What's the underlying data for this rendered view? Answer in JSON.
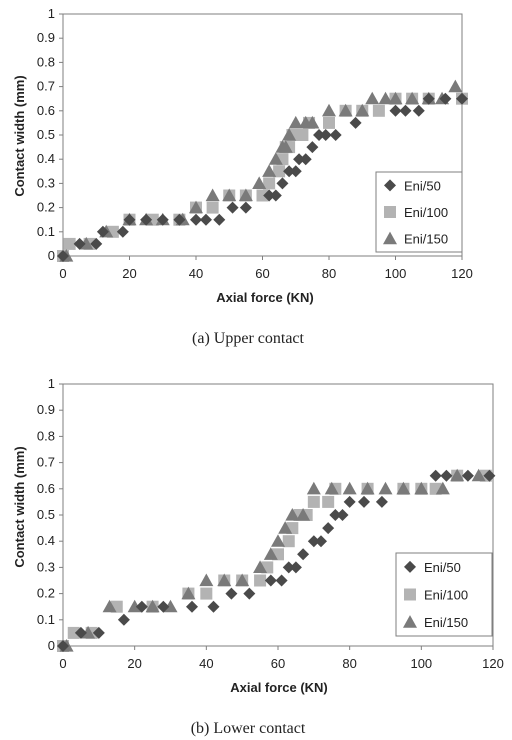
{
  "colors": {
    "eni50": "#4a4a4a",
    "eni100": "#b3b3b3",
    "eni150": "#7a7a7a",
    "axis": "#7f7f7f",
    "text": "#222222"
  },
  "chart_data": [
    {
      "type": "scatter",
      "caption": "(a) Upper contact",
      "xlabel": "Axial force (KN)",
      "ylabel": "Contact width (mm)",
      "xlim": [
        0,
        120
      ],
      "ylim": [
        0,
        1
      ],
      "xticks": [
        "0",
        "20",
        "40",
        "60",
        "80",
        "100",
        "120"
      ],
      "yticks": [
        "0",
        "0.1",
        "0.2",
        "0.3",
        "0.4",
        "0.5",
        "0.6",
        "0.7",
        "0.8",
        "0.9",
        "1"
      ],
      "grid": false,
      "legend_position": "lower-right",
      "series": [
        {
          "name": "Eni/50",
          "marker": "diamond",
          "points": [
            [
              0,
              0
            ],
            [
              5,
              0.05
            ],
            [
              10,
              0.05
            ],
            [
              12,
              0.1
            ],
            [
              18,
              0.1
            ],
            [
              20,
              0.15
            ],
            [
              25,
              0.15
            ],
            [
              30,
              0.15
            ],
            [
              35,
              0.15
            ],
            [
              40,
              0.15
            ],
            [
              43,
              0.15
            ],
            [
              47,
              0.15
            ],
            [
              51,
              0.2
            ],
            [
              55,
              0.2
            ],
            [
              62,
              0.25
            ],
            [
              64,
              0.25
            ],
            [
              66,
              0.3
            ],
            [
              68,
              0.35
            ],
            [
              70,
              0.35
            ],
            [
              71,
              0.4
            ],
            [
              73,
              0.4
            ],
            [
              75,
              0.45
            ],
            [
              77,
              0.5
            ],
            [
              79,
              0.5
            ],
            [
              82,
              0.5
            ],
            [
              88,
              0.55
            ],
            [
              100,
              0.6
            ],
            [
              103,
              0.6
            ],
            [
              107,
              0.6
            ],
            [
              110,
              0.65
            ],
            [
              115,
              0.65
            ],
            [
              120,
              0.65
            ]
          ]
        },
        {
          "name": "Eni/100",
          "marker": "square",
          "points": [
            [
              0,
              0
            ],
            [
              2,
              0.05
            ],
            [
              8,
              0.05
            ],
            [
              15,
              0.1
            ],
            [
              20,
              0.15
            ],
            [
              27,
              0.15
            ],
            [
              35,
              0.15
            ],
            [
              40,
              0.2
            ],
            [
              45,
              0.2
            ],
            [
              50,
              0.25
            ],
            [
              55,
              0.25
            ],
            [
              60,
              0.25
            ],
            [
              62,
              0.3
            ],
            [
              65,
              0.35
            ],
            [
              66,
              0.4
            ],
            [
              67,
              0.45
            ],
            [
              68,
              0.45
            ],
            [
              69,
              0.5
            ],
            [
              72,
              0.5
            ],
            [
              74,
              0.55
            ],
            [
              80,
              0.55
            ],
            [
              85,
              0.6
            ],
            [
              90,
              0.6
            ],
            [
              95,
              0.6
            ],
            [
              100,
              0.65
            ],
            [
              105,
              0.65
            ],
            [
              110,
              0.65
            ],
            [
              120,
              0.65
            ]
          ]
        },
        {
          "name": "Eni/150",
          "marker": "triangle",
          "points": [
            [
              1,
              0
            ],
            [
              7,
              0.05
            ],
            [
              13,
              0.1
            ],
            [
              20,
              0.15
            ],
            [
              25,
              0.15
            ],
            [
              30,
              0.15
            ],
            [
              36,
              0.15
            ],
            [
              40,
              0.2
            ],
            [
              45,
              0.25
            ],
            [
              50,
              0.25
            ],
            [
              55,
              0.25
            ],
            [
              59,
              0.3
            ],
            [
              62,
              0.35
            ],
            [
              64,
              0.4
            ],
            [
              66,
              0.45
            ],
            [
              67,
              0.45
            ],
            [
              68,
              0.5
            ],
            [
              70,
              0.55
            ],
            [
              73,
              0.55
            ],
            [
              75,
              0.55
            ],
            [
              80,
              0.6
            ],
            [
              85,
              0.6
            ],
            [
              90,
              0.6
            ],
            [
              93,
              0.65
            ],
            [
              97,
              0.65
            ],
            [
              100,
              0.65
            ],
            [
              105,
              0.65
            ],
            [
              110,
              0.65
            ],
            [
              114,
              0.65
            ],
            [
              118,
              0.7
            ]
          ]
        }
      ]
    },
    {
      "type": "scatter",
      "caption": "(b) Lower contact",
      "xlabel": "Axial force (KN)",
      "ylabel": "Contact width (mm)",
      "xlim": [
        0,
        120
      ],
      "ylim": [
        0,
        1
      ],
      "xticks": [
        "0",
        "20",
        "40",
        "60",
        "80",
        "100",
        "120"
      ],
      "yticks": [
        "0",
        "0.1",
        "0.2",
        "0.3",
        "0.4",
        "0.5",
        "0.6",
        "0.7",
        "0.8",
        "0.9",
        "1"
      ],
      "grid": false,
      "legend_position": "lower-right",
      "series": [
        {
          "name": "Eni/50",
          "marker": "diamond",
          "points": [
            [
              0,
              0
            ],
            [
              5,
              0.05
            ],
            [
              10,
              0.05
            ],
            [
              17,
              0.1
            ],
            [
              22,
              0.15
            ],
            [
              28,
              0.15
            ],
            [
              36,
              0.15
            ],
            [
              42,
              0.15
            ],
            [
              47,
              0.2
            ],
            [
              52,
              0.2
            ],
            [
              58,
              0.25
            ],
            [
              61,
              0.25
            ],
            [
              63,
              0.3
            ],
            [
              65,
              0.3
            ],
            [
              67,
              0.35
            ],
            [
              70,
              0.4
            ],
            [
              72,
              0.4
            ],
            [
              74,
              0.45
            ],
            [
              76,
              0.5
            ],
            [
              78,
              0.5
            ],
            [
              80,
              0.55
            ],
            [
              84,
              0.55
            ],
            [
              89,
              0.55
            ],
            [
              104,
              0.65
            ],
            [
              107,
              0.65
            ],
            [
              113,
              0.65
            ],
            [
              119,
              0.65
            ]
          ]
        },
        {
          "name": "Eni/100",
          "marker": "square",
          "points": [
            [
              0,
              0
            ],
            [
              3,
              0.05
            ],
            [
              8,
              0.05
            ],
            [
              15,
              0.15
            ],
            [
              25,
              0.15
            ],
            [
              35,
              0.2
            ],
            [
              40,
              0.2
            ],
            [
              45,
              0.25
            ],
            [
              50,
              0.25
            ],
            [
              55,
              0.25
            ],
            [
              57,
              0.3
            ],
            [
              60,
              0.35
            ],
            [
              63,
              0.4
            ],
            [
              64,
              0.45
            ],
            [
              66,
              0.5
            ],
            [
              68,
              0.5
            ],
            [
              70,
              0.55
            ],
            [
              74,
              0.55
            ],
            [
              76,
              0.6
            ],
            [
              85,
              0.6
            ],
            [
              95,
              0.6
            ],
            [
              100,
              0.6
            ],
            [
              104,
              0.6
            ],
            [
              110,
              0.65
            ],
            [
              118,
              0.65
            ]
          ]
        },
        {
          "name": "Eni/150",
          "marker": "triangle",
          "points": [
            [
              1,
              0
            ],
            [
              7,
              0.05
            ],
            [
              13,
              0.15
            ],
            [
              20,
              0.15
            ],
            [
              25,
              0.15
            ],
            [
              30,
              0.15
            ],
            [
              35,
              0.2
            ],
            [
              40,
              0.25
            ],
            [
              45,
              0.25
            ],
            [
              50,
              0.25
            ],
            [
              55,
              0.3
            ],
            [
              58,
              0.35
            ],
            [
              60,
              0.4
            ],
            [
              62,
              0.45
            ],
            [
              64,
              0.5
            ],
            [
              67,
              0.5
            ],
            [
              70,
              0.6
            ],
            [
              75,
              0.6
            ],
            [
              80,
              0.6
            ],
            [
              85,
              0.6
            ],
            [
              90,
              0.6
            ],
            [
              95,
              0.6
            ],
            [
              100,
              0.6
            ],
            [
              106,
              0.6
            ],
            [
              110,
              0.65
            ],
            [
              116,
              0.65
            ]
          ]
        }
      ]
    }
  ]
}
